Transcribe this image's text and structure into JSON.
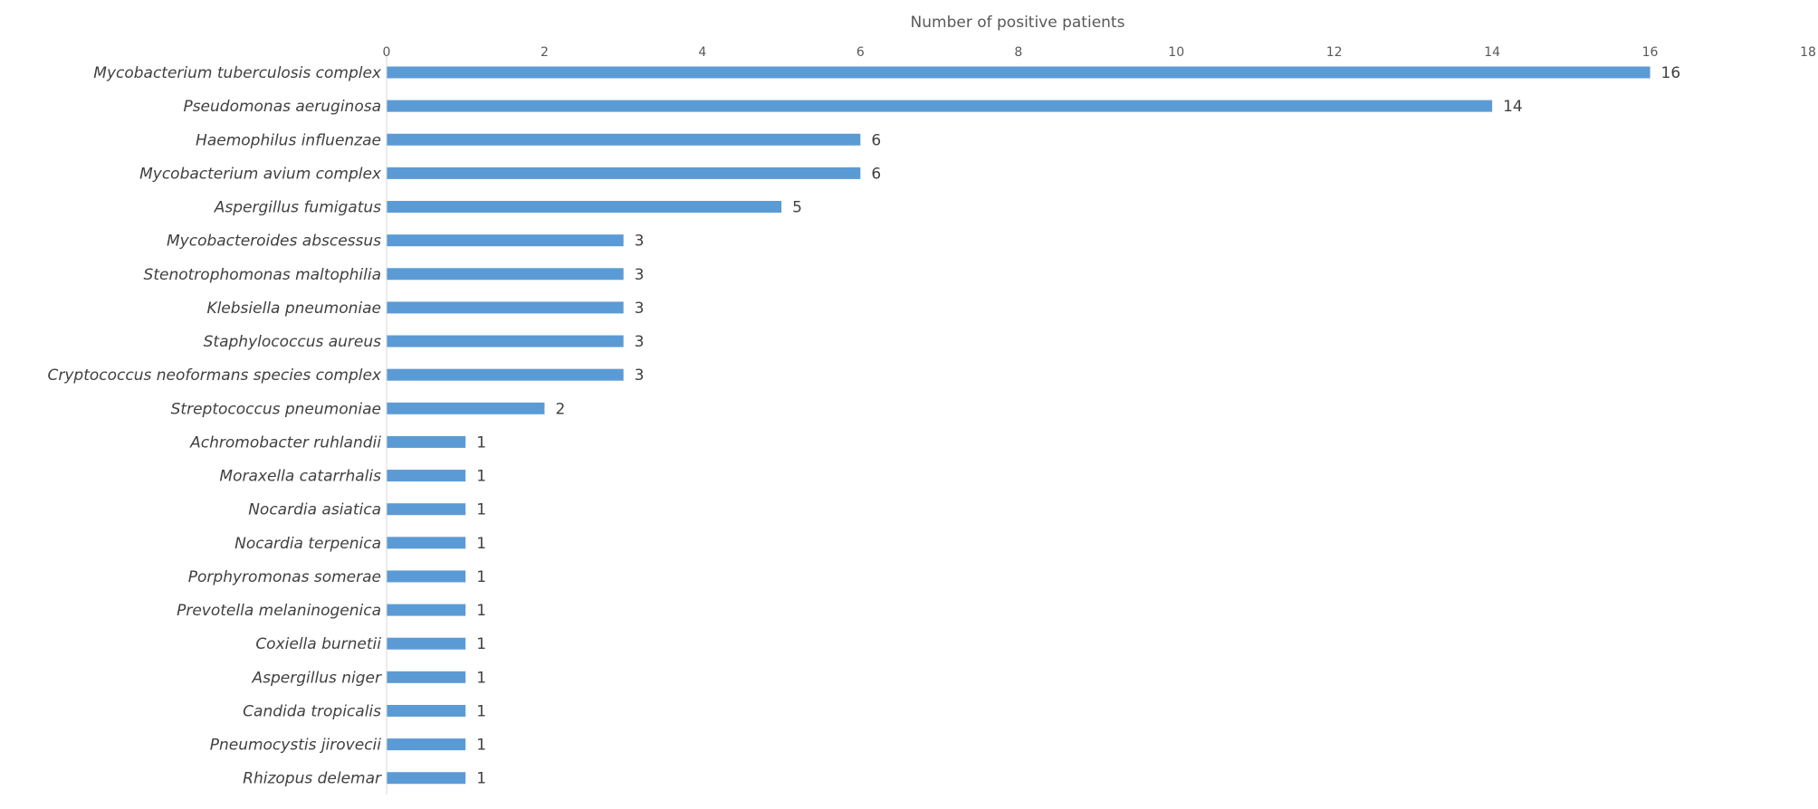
{
  "chart_data": {
    "type": "bar",
    "orientation": "horizontal",
    "xlabel": "Number of positive patients",
    "ylabel": "",
    "xlim": [
      0,
      18
    ],
    "x_ticks": [
      0,
      2,
      4,
      6,
      8,
      10,
      12,
      14,
      16,
      18
    ],
    "x_axis_position": "top",
    "grid": false,
    "legend": "none",
    "bar_color": "#5B9BD5",
    "categories": [
      "Mycobacterium tuberculosis complex",
      "Pseudomonas aeruginosa",
      "Haemophilus influenzae",
      "Mycobacterium avium complex",
      "Aspergillus fumigatus",
      "Mycobacteroides abscessus",
      "Stenotrophomonas maltophilia",
      "Klebsiella pneumoniae",
      "Staphylococcus aureus",
      "Cryptococcus neoformans species complex",
      "Streptococcus pneumoniae",
      "Achromobacter ruhlandii",
      "Moraxella catarrhalis",
      "Nocardia asiatica",
      "Nocardia terpenica",
      "Porphyromonas somerae",
      "Prevotella melaninogenica",
      "Coxiella burnetii",
      "Aspergillus niger",
      "Candida tropicalis",
      "Pneumocystis jirovecii",
      "Rhizopus delemar"
    ],
    "values": [
      16,
      14,
      6,
      6,
      5,
      3,
      3,
      3,
      3,
      3,
      2,
      1,
      1,
      1,
      1,
      1,
      1,
      1,
      1,
      1,
      1,
      1
    ]
  }
}
